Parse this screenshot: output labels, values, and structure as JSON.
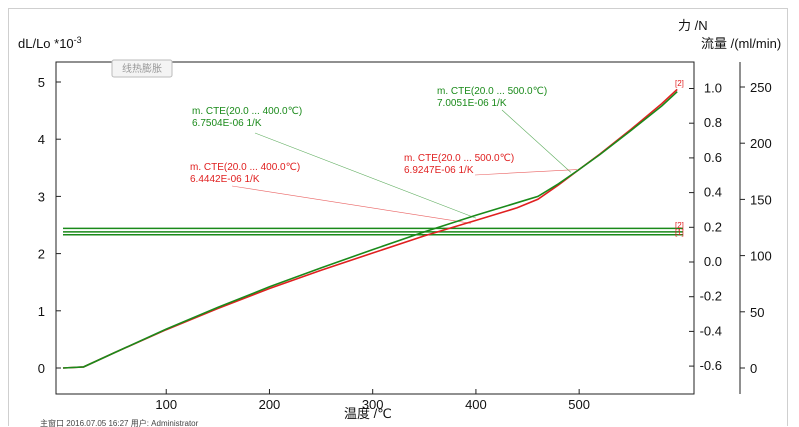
{
  "chart_data": {
    "type": "line",
    "title": "",
    "plot_label": "线热膨胀",
    "xlabel": "温度 /℃",
    "ylabel_left": "dL/Lo *10-3",
    "ylabel_left_base": "dL/Lo *10",
    "ylabel_left_exp": "-3",
    "ylabel_right1": "力 /N",
    "ylabel_right2": "流量 /(ml/min)",
    "xlim": [
      0,
      600
    ],
    "ylim_left": [
      -0.25,
      5.3
    ],
    "ylim_force": [
      -0.72,
      1.13
    ],
    "ylim_flow": [
      -15,
      265
    ],
    "x_ticks": [
      100,
      200,
      300,
      400,
      500
    ],
    "y_ticks_left": [
      0,
      1,
      2,
      3,
      4,
      5
    ],
    "y_ticks_force": [
      -0.6,
      -0.4,
      -0.2,
      0.0,
      0.2,
      0.4,
      0.6,
      0.8,
      1.0
    ],
    "y_ticks_force_labels": [
      "-0.6",
      "-0.4",
      "-0.2",
      "0.0",
      "0.2",
      "0.4",
      "0.6",
      "0.8",
      "1.0"
    ],
    "y_ticks_flow": [
      0,
      50,
      100,
      150,
      200,
      250
    ],
    "series": [
      {
        "color": "#e02020",
        "x": [
          0,
          20,
          50,
          100,
          150,
          200,
          250,
          300,
          350,
          400,
          440,
          460,
          480,
          500,
          520,
          550,
          580,
          595
        ],
        "y": [
          0,
          0.02,
          0.27,
          0.67,
          1.04,
          1.39,
          1.71,
          2.01,
          2.31,
          2.58,
          2.8,
          2.95,
          3.2,
          3.47,
          3.74,
          4.17,
          4.62,
          4.87
        ]
      },
      {
        "color": "#1a8a1a",
        "x": [
          0,
          20,
          50,
          100,
          150,
          200,
          250,
          300,
          350,
          400,
          440,
          460,
          480,
          500,
          520,
          550,
          580,
          595
        ],
        "y": [
          0,
          0.02,
          0.27,
          0.68,
          1.06,
          1.42,
          1.75,
          2.07,
          2.38,
          2.67,
          2.89,
          3.0,
          3.22,
          3.47,
          3.73,
          4.15,
          4.58,
          4.83
        ]
      }
    ],
    "horizontal_lines": [
      {
        "color": "#1a8a1a",
        "y": 2.44
      },
      {
        "color": "#1a8a1a",
        "y": 2.38
      },
      {
        "color": "#1a8a1a",
        "y": 2.33
      }
    ],
    "end_markers": {
      "top": "[2]",
      "hline_upper": "[2]",
      "hline_lower": "[1]"
    },
    "annotations": [
      {
        "color": "#1a8a1a",
        "line1": "m. CTE(20.0 ... 400.0℃)",
        "line2": "6.7504E-06 1/K",
        "anchor_x": 400,
        "anchor_y": 2.62
      },
      {
        "color": "#e02020",
        "line1": "m. CTE(20.0 ... 400.0℃)",
        "line2": "6.4442E-06 1/K",
        "anchor_x": 395,
        "anchor_y": 2.53
      },
      {
        "color": "#1a8a1a",
        "line1": "m. CTE(20.0 ... 500.0℃)",
        "line2": "7.0051E-06 1/K",
        "anchor_x": 492,
        "anchor_y": 3.42
      },
      {
        "color": "#e02020",
        "line1": "m. CTE(20.0 ... 500.0℃)",
        "line2": "6.9247E-06 1/K",
        "anchor_x": 498,
        "anchor_y": 3.47
      }
    ]
  },
  "footer": {
    "text": "主窗口   2016.07.05 16:27   用户: Administrator"
  }
}
